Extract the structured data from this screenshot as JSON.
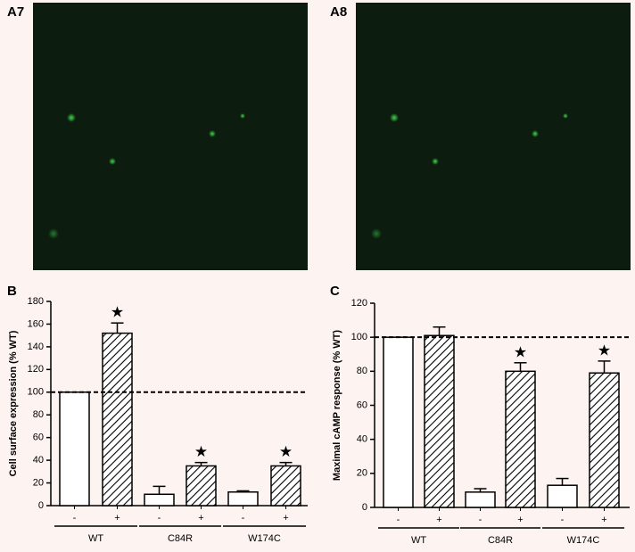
{
  "panels": [
    {
      "label": "A7"
    },
    {
      "label": "A8"
    }
  ],
  "chart_data": [
    {
      "type": "bar",
      "panel": "B",
      "ylabel": "Cell surface expression (% WT)",
      "categories": [
        "-",
        "+",
        "-",
        "+",
        "-",
        "+"
      ],
      "groups": [
        {
          "label": "WT",
          "size": 2
        },
        {
          "label": "C84R",
          "size": 2
        },
        {
          "label": "W174C",
          "size": 2
        }
      ],
      "values": [
        100,
        152,
        10,
        35,
        12,
        35
      ],
      "errors": [
        0,
        9,
        7,
        3,
        1,
        3
      ],
      "fills": [
        "open",
        "hatched",
        "open",
        "hatched",
        "open",
        "hatched"
      ],
      "significant": [
        false,
        true,
        false,
        true,
        false,
        true
      ],
      "significance_marker": "★",
      "reference_line": 100,
      "ylim": [
        0,
        180
      ],
      "yticks": [
        0,
        20,
        40,
        60,
        80,
        100,
        120,
        140,
        160,
        180
      ]
    },
    {
      "type": "bar",
      "panel": "C",
      "ylabel": "Maximal cAMP response (% WT)",
      "categories": [
        "-",
        "+",
        "-",
        "+",
        "-",
        "+"
      ],
      "groups": [
        {
          "label": "WT",
          "size": 2
        },
        {
          "label": "C84R",
          "size": 2
        },
        {
          "label": "W174C",
          "size": 2
        }
      ],
      "values": [
        100,
        101,
        9,
        80,
        13,
        79
      ],
      "errors": [
        0,
        5,
        2,
        5,
        4,
        7
      ],
      "fills": [
        "open",
        "hatched",
        "open",
        "hatched",
        "open",
        "hatched"
      ],
      "significant": [
        false,
        false,
        false,
        true,
        false,
        true
      ],
      "significance_marker": "★",
      "reference_line": 100,
      "ylim": [
        0,
        120
      ],
      "yticks": [
        0,
        20,
        40,
        60,
        80,
        100,
        120
      ]
    }
  ]
}
